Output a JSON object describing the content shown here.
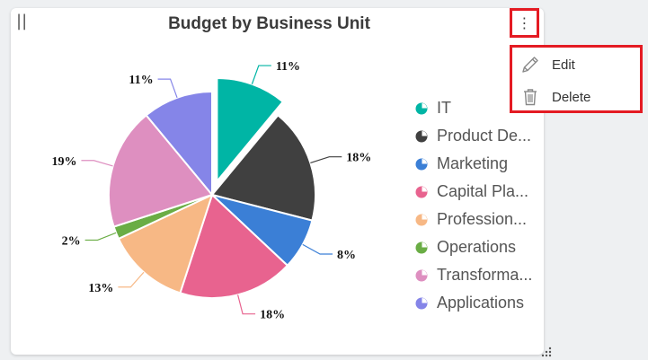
{
  "card": {
    "drag_handle": "||",
    "title": "Budget by Business Unit",
    "menu_button": "⋮"
  },
  "context_menu": {
    "items": [
      {
        "label": "Edit",
        "icon": "pencil-icon"
      },
      {
        "label": "Delete",
        "icon": "trash-icon"
      }
    ]
  },
  "chart_data": {
    "type": "pie",
    "title": "Budget by Business Unit",
    "categories": [
      "IT",
      "Product De...",
      "Marketing",
      "Capital Pla...",
      "Profession...",
      "Operations",
      "Transforma...",
      "Applications"
    ],
    "values": [
      11,
      18,
      8,
      18,
      13,
      2,
      19,
      11
    ],
    "labels": [
      "11%",
      "18%",
      "8%",
      "18%",
      "13%",
      "2%",
      "19%",
      "11%"
    ],
    "colors": [
      "#00b5a5",
      "#404040",
      "#3b7fd6",
      "#e8638f",
      "#f7b885",
      "#6aad45",
      "#de8fc0",
      "#8585e8"
    ],
    "exploded": "IT",
    "legend": "right"
  }
}
